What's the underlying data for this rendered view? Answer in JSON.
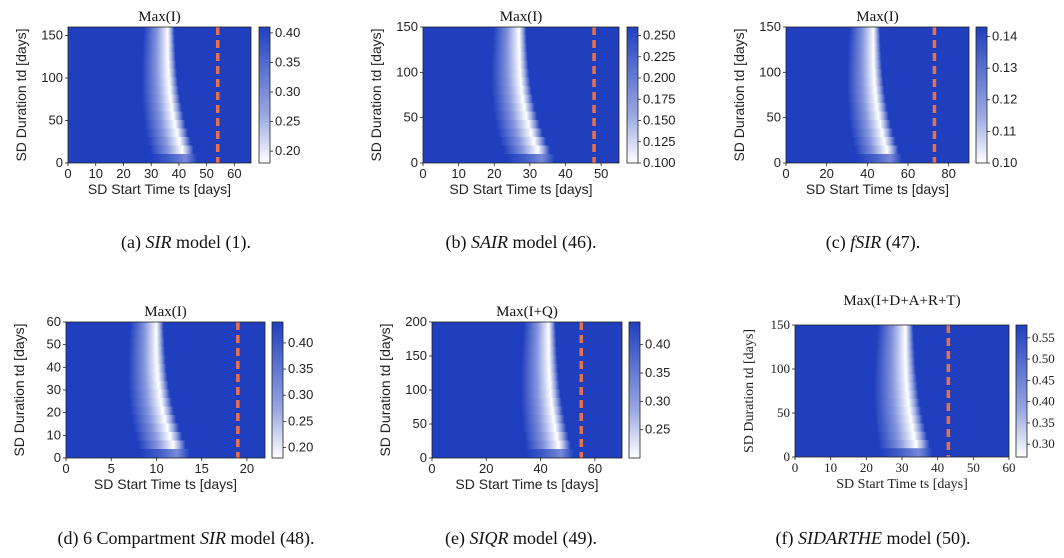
{
  "chart_data": [
    {
      "id": "a",
      "type": "heatmap",
      "title": "Max(I)",
      "xlabel": "SD Start Time ts [days]",
      "ylabel": "SD Duration td [days]",
      "xlim": [
        0,
        66
      ],
      "ylim": [
        0,
        160
      ],
      "xticks": [
        0,
        10,
        20,
        30,
        40,
        50,
        60
      ],
      "yticks": [
        0,
        50,
        100,
        150
      ],
      "colorbar": {
        "min": 0.18,
        "max": 0.41,
        "ticks": [
          "0.40",
          "0.35",
          "0.30",
          "0.25",
          "0.20"
        ],
        "tick_values": [
          0.4,
          0.35,
          0.3,
          0.25,
          0.2
        ]
      },
      "peak_ts_at_high_td": 36,
      "peak_ts_at_low_td": 43,
      "dashed_line_ts": 54,
      "caption": {
        "prefix": "(a) ",
        "model": "SIR",
        "suffix": " model (1)."
      }
    },
    {
      "id": "b",
      "type": "heatmap",
      "title": "Max(I)",
      "xlabel": "SD Start Time ts [days]",
      "ylabel": "SD Duration td [days]",
      "xlim": [
        0,
        55
      ],
      "ylim": [
        0,
        150
      ],
      "xticks": [
        0,
        10,
        20,
        30,
        40,
        50
      ],
      "yticks": [
        0,
        50,
        100,
        150
      ],
      "colorbar": {
        "min": 0.1,
        "max": 0.26,
        "ticks": [
          "0.250",
          "0.225",
          "0.200",
          "0.175",
          "0.150",
          "0.125",
          "0.100"
        ],
        "tick_values": [
          0.25,
          0.225,
          0.2,
          0.175,
          0.15,
          0.125,
          0.1
        ]
      },
      "peak_ts_at_high_td": 27,
      "peak_ts_at_low_td": 34,
      "dashed_line_ts": 48,
      "caption": {
        "prefix": "(b) ",
        "model": "SAIR",
        "suffix": " model (46)."
      }
    },
    {
      "id": "c",
      "type": "heatmap",
      "title": "Max(I)",
      "xlabel": "SD Start Time ts [days]",
      "ylabel": "SD Duration td [days]",
      "xlim": [
        0,
        90
      ],
      "ylim": [
        0,
        150
      ],
      "xticks": [
        0,
        20,
        40,
        60,
        80
      ],
      "yticks": [
        0,
        50,
        100,
        150
      ],
      "colorbar": {
        "min": 0.1,
        "max": 0.143,
        "ticks": [
          "0.14",
          "0.13",
          "0.12",
          "0.11",
          "0.10"
        ],
        "tick_values": [
          0.14,
          0.13,
          0.12,
          0.11,
          0.1
        ]
      },
      "peak_ts_at_high_td": 43,
      "peak_ts_at_low_td": 52,
      "dashed_line_ts": 73,
      "caption": {
        "prefix": "(c) ",
        "model": "fSIR",
        "suffix": " (47)."
      }
    },
    {
      "id": "d",
      "type": "heatmap",
      "title": "Max(I)",
      "xlabel": "SD Start Time ts [days]",
      "ylabel": "SD Duration td [days]",
      "xlim": [
        0,
        22
      ],
      "ylim": [
        0,
        60
      ],
      "xticks": [
        0,
        5,
        10,
        15,
        20
      ],
      "yticks": [
        0,
        10,
        20,
        30,
        40,
        50,
        60
      ],
      "colorbar": {
        "min": 0.18,
        "max": 0.44,
        "ticks": [
          "0.40",
          "0.35",
          "0.30",
          "0.25",
          "0.20"
        ],
        "tick_values": [
          0.4,
          0.35,
          0.3,
          0.25,
          0.2
        ]
      },
      "peak_ts_at_high_td": 10,
      "peak_ts_at_low_td": 12.5,
      "dashed_line_ts": 19,
      "caption": {
        "prefix": "(d) 6 Compartment ",
        "model": "SIR",
        "suffix": " model (48)."
      }
    },
    {
      "id": "e",
      "type": "heatmap",
      "title": "Max(I+Q)",
      "xlabel": "SD Start Time ts [days]",
      "ylabel": "SD Duration td [days]",
      "xlim": [
        0,
        70
      ],
      "ylim": [
        0,
        200
      ],
      "xticks": [
        0,
        20,
        40,
        60
      ],
      "yticks": [
        0,
        50,
        100,
        150,
        200
      ],
      "colorbar": {
        "min": 0.2,
        "max": 0.44,
        "ticks": [
          "0.40",
          "0.35",
          "0.30",
          "0.25"
        ],
        "tick_values": [
          0.4,
          0.35,
          0.3,
          0.25
        ]
      },
      "peak_ts_at_high_td": 43,
      "peak_ts_at_low_td": 48,
      "dashed_line_ts": 55,
      "caption": {
        "prefix": "(e) ",
        "model": "SIQR",
        "suffix": " model (49)."
      }
    },
    {
      "id": "f",
      "type": "heatmap",
      "title": "Max(I+D+A+R+T)",
      "xlabel": "SD Start Time ts [days]",
      "ylabel": "SD Duration td [days]",
      "xlim": [
        0,
        60
      ],
      "ylim": [
        0,
        150
      ],
      "xticks": [
        0,
        10,
        20,
        30,
        40,
        50,
        60
      ],
      "yticks": [
        0,
        50,
        100,
        150
      ],
      "colorbar": {
        "min": 0.27,
        "max": 0.58,
        "ticks": [
          "0.55",
          "0.50",
          "0.45",
          "0.40",
          "0.35",
          "0.30"
        ],
        "tick_values": [
          0.55,
          0.5,
          0.45,
          0.4,
          0.35,
          0.3
        ]
      },
      "peak_ts_at_high_td": 31,
      "peak_ts_at_low_td": 35,
      "dashed_line_ts": 43,
      "caption": {
        "prefix": "(f) ",
        "model": "SIDARTHE",
        "suffix": " model (50)."
      }
    }
  ],
  "colors": {
    "low": "#ffffff",
    "high": "#1f3fbf",
    "dashed_line": "#e8704a"
  }
}
